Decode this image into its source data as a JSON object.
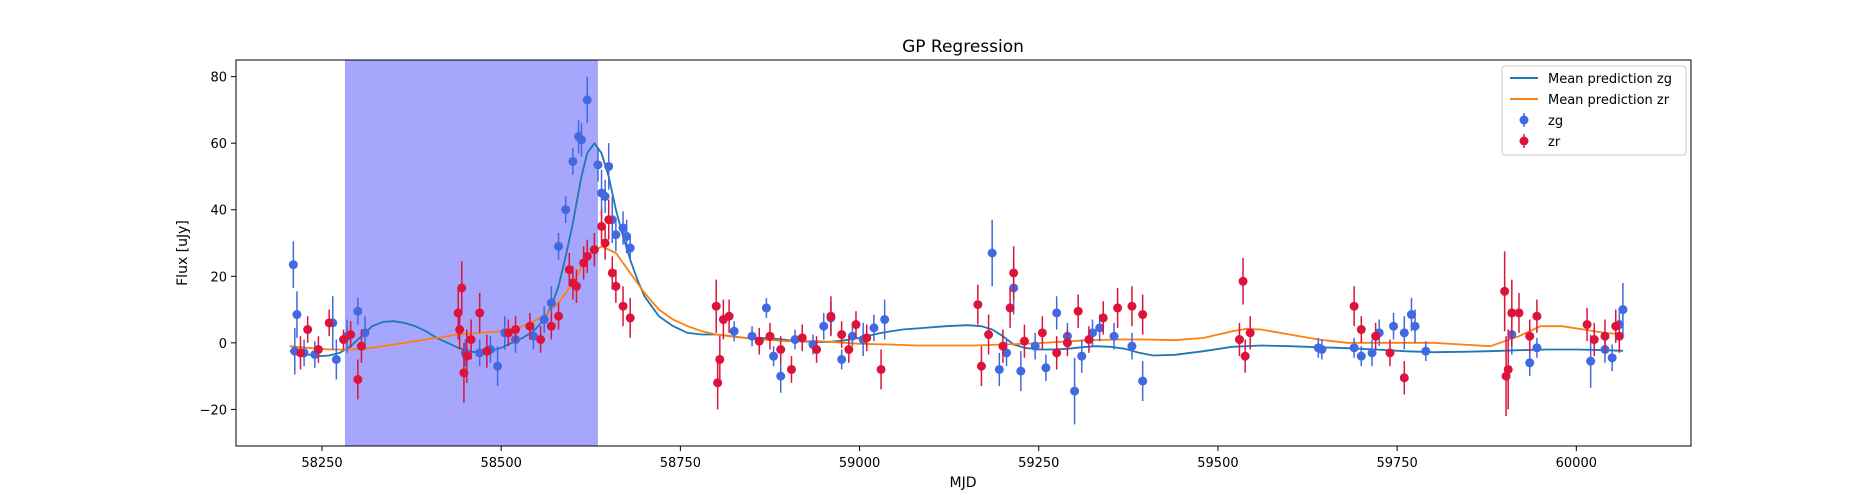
{
  "chart_data": {
    "type": "scatter",
    "title": "GP Regression",
    "xlabel": "MJD",
    "ylabel": "Flux [uJy]",
    "xlim": [
      58130,
      60160
    ],
    "ylim": [
      -31,
      85
    ],
    "xticks": [
      58250,
      58500,
      58750,
      59000,
      59250,
      59500,
      59750,
      60000
    ],
    "yticks": [
      -20,
      0,
      20,
      40,
      60,
      80
    ],
    "grid": false,
    "legend_position": "top-right",
    "highlight_region": {
      "x": [
        58282,
        58635
      ],
      "color": "#a6a6fd"
    },
    "series": [
      {
        "name": "Mean prediction zg",
        "kind": "line",
        "color": "#1f77b4",
        "x": [
          58205,
          58215,
          58230,
          58245,
          58260,
          58275,
          58290,
          58305,
          58320,
          58335,
          58350,
          58365,
          58380,
          58395,
          58410,
          58425,
          58440,
          58455,
          58470,
          58485,
          58500,
          58515,
          58530,
          58545,
          58560,
          58570,
          58580,
          58590,
          58600,
          58605,
          58612,
          58620,
          58630,
          58640,
          58650,
          58660,
          58670,
          58680,
          58690,
          58700,
          58720,
          58740,
          58760,
          58780,
          58800,
          58820,
          58840,
          58860,
          58880,
          58900,
          58920,
          58940,
          58960,
          58980,
          59000,
          59030,
          59060,
          59090,
          59120,
          59150,
          59170,
          59185,
          59200,
          59215,
          59230,
          59250,
          59270,
          59290,
          59310,
          59330,
          59350,
          59370,
          59390,
          59410,
          59440,
          59480,
          59520,
          59560,
          59600,
          59640,
          59680,
          59720,
          59760,
          59800,
          59840,
          59880,
          59920,
          59960,
          60000,
          60040,
          60065
        ],
        "y": [
          -2.5,
          -2.8,
          -3.5,
          -4,
          -3.8,
          -3,
          -1,
          2,
          5,
          6.3,
          6.5,
          6,
          5,
          3.5,
          1.5,
          0,
          -1.5,
          -2.5,
          -3,
          -2.5,
          -1.5,
          0,
          1.5,
          3.5,
          7,
          11,
          17,
          26,
          36,
          42,
          50,
          57,
          60,
          57,
          50,
          40,
          32,
          25,
          19,
          14,
          8,
          5,
          3,
          2.5,
          2.5,
          2,
          1.5,
          1.5,
          1.3,
          0.8,
          0.4,
          0.2,
          0.3,
          0.8,
          1.5,
          3,
          4,
          4.5,
          5,
          5.3,
          5,
          4,
          2,
          -0.5,
          -1.5,
          -2,
          -2,
          -1.8,
          -1.3,
          -1,
          -1.2,
          -1.8,
          -3,
          -3.8,
          -3.6,
          -2.5,
          -1.2,
          -0.8,
          -1,
          -1.3,
          -1.6,
          -2,
          -2.5,
          -2.8,
          -2.7,
          -2.5,
          -2.2,
          -2,
          -2,
          -2.2,
          -2.4
        ]
      },
      {
        "name": "Mean prediction zr",
        "kind": "line",
        "color": "#ff7f0e",
        "x": [
          58205,
          58230,
          58260,
          58290,
          58320,
          58350,
          58380,
          58410,
          58440,
          58470,
          58500,
          58530,
          58560,
          58580,
          58600,
          58620,
          58640,
          58660,
          58680,
          58700,
          58720,
          58740,
          58760,
          58780,
          58800,
          58820,
          58840,
          58860,
          58880,
          58900,
          58920,
          58940,
          58960,
          58980,
          59000,
          59040,
          59080,
          59120,
          59160,
          59200,
          59240,
          59280,
          59320,
          59360,
          59400,
          59440,
          59480,
          59520,
          59540,
          59560,
          59600,
          59640,
          59680,
          59720,
          59760,
          59800,
          59840,
          59880,
          59920,
          59950,
          59980,
          60010,
          60040,
          60065
        ],
        "y": [
          -1,
          -1.5,
          -2,
          -2,
          -1.5,
          -0.5,
          0.5,
          1.5,
          2.5,
          3,
          3.5,
          5,
          8,
          12,
          18,
          26,
          29,
          27,
          21,
          15,
          10,
          7,
          5,
          3.5,
          2.5,
          2,
          1.5,
          1,
          0.8,
          0.5,
          0.5,
          0.5,
          0.3,
          0,
          -0.3,
          -0.5,
          -0.8,
          -0.8,
          -0.8,
          -0.5,
          -0.2,
          0.3,
          0.8,
          1,
          1,
          0.8,
          1.5,
          3.5,
          4.2,
          4,
          2.5,
          1,
          0,
          0,
          0,
          0,
          -0.5,
          -1,
          2,
          5,
          5,
          4,
          3,
          2.5
        ]
      },
      {
        "name": "zg",
        "kind": "errorbar",
        "color": "#4169e1",
        "points": [
          [
            58210,
            23.5,
            7
          ],
          [
            58212,
            -2.5,
            7
          ],
          [
            58215,
            8.5,
            7
          ],
          [
            58225,
            -3,
            4
          ],
          [
            58240,
            -3.5,
            4
          ],
          [
            58265,
            6,
            8
          ],
          [
            58270,
            -5,
            6
          ],
          [
            58285,
            2,
            5
          ],
          [
            58300,
            9.5,
            4
          ],
          [
            58310,
            3,
            5
          ],
          [
            58450,
            -3,
            4
          ],
          [
            58470,
            -3,
            4
          ],
          [
            58485,
            -2,
            4
          ],
          [
            58495,
            -7,
            6
          ],
          [
            58505,
            3,
            5
          ],
          [
            58520,
            1,
            4
          ],
          [
            58545,
            2,
            4
          ],
          [
            58560,
            7,
            4
          ],
          [
            58570,
            12,
            5
          ],
          [
            58580,
            29,
            4
          ],
          [
            58590,
            40,
            4
          ],
          [
            58600,
            54.5,
            4
          ],
          [
            58608,
            62,
            5
          ],
          [
            58612,
            61,
            5
          ],
          [
            58620,
            73,
            7
          ],
          [
            58635,
            53.5,
            5
          ],
          [
            58640,
            45,
            7
          ],
          [
            58645,
            44,
            5
          ],
          [
            58650,
            53,
            7
          ],
          [
            58655,
            37,
            7
          ],
          [
            58660,
            32.5,
            5
          ],
          [
            58670,
            34.5,
            5
          ],
          [
            58675,
            32,
            5
          ],
          [
            58680,
            28.5,
            4
          ],
          [
            58825,
            3.5,
            3
          ],
          [
            58850,
            2,
            3
          ],
          [
            58870,
            10.5,
            3
          ],
          [
            58880,
            -4,
            3
          ],
          [
            58890,
            -10,
            5
          ],
          [
            58910,
            1,
            3
          ],
          [
            58935,
            -0.5,
            3
          ],
          [
            58950,
            5,
            4
          ],
          [
            58960,
            7.5,
            5
          ],
          [
            58975,
            -5,
            3
          ],
          [
            58990,
            2,
            3
          ],
          [
            59005,
            1,
            5
          ],
          [
            59020,
            4.5,
            4
          ],
          [
            59035,
            7,
            6
          ],
          [
            59185,
            27,
            10
          ],
          [
            59195,
            -8,
            5
          ],
          [
            59205,
            -3,
            4
          ],
          [
            59215,
            16.5,
            8
          ],
          [
            59225,
            -8.5,
            6
          ],
          [
            59245,
            -1,
            4
          ],
          [
            59260,
            -7.5,
            4
          ],
          [
            59275,
            9,
            5
          ],
          [
            59290,
            2,
            4
          ],
          [
            59300,
            -14.5,
            10
          ],
          [
            59310,
            -4,
            5
          ],
          [
            59325,
            3,
            4
          ],
          [
            59335,
            4.5,
            4
          ],
          [
            59355,
            2,
            4
          ],
          [
            59380,
            -1,
            4
          ],
          [
            59395,
            -11.5,
            6
          ],
          [
            59640,
            -1.5,
            3
          ],
          [
            59645,
            -2,
            3
          ],
          [
            59690,
            -1.5,
            3
          ],
          [
            59700,
            -4,
            3
          ],
          [
            59715,
            -3,
            4
          ],
          [
            59725,
            3,
            4
          ],
          [
            59745,
            5,
            4
          ],
          [
            59760,
            3,
            5
          ],
          [
            59770,
            8.5,
            5
          ],
          [
            59775,
            5,
            5
          ],
          [
            59790,
            -2.5,
            3
          ],
          [
            59910,
            2.5,
            6
          ],
          [
            59935,
            -6,
            4
          ],
          [
            59945,
            -1.5,
            3
          ],
          [
            60020,
            -5.5,
            8
          ],
          [
            60040,
            -2,
            4
          ],
          [
            60050,
            -4.5,
            4
          ],
          [
            60060,
            5.5,
            5
          ],
          [
            60065,
            10,
            8
          ]
        ]
      },
      {
        "name": "zr",
        "kind": "errorbar",
        "color": "#dc143c",
        "points": [
          [
            58220,
            -3,
            5
          ],
          [
            58230,
            4,
            4
          ],
          [
            58245,
            -2,
            4
          ],
          [
            58260,
            6,
            4
          ],
          [
            58280,
            1,
            3
          ],
          [
            58290,
            2.5,
            4
          ],
          [
            58300,
            -11,
            6
          ],
          [
            58305,
            -1,
            5
          ],
          [
            58440,
            9,
            8
          ],
          [
            58442,
            4,
            6
          ],
          [
            58445,
            16.5,
            8
          ],
          [
            58448,
            -9,
            9
          ],
          [
            58452,
            -4,
            8
          ],
          [
            58458,
            1,
            6
          ],
          [
            58470,
            9,
            6
          ],
          [
            58480,
            -2.5,
            5
          ],
          [
            58510,
            3,
            4
          ],
          [
            58520,
            4,
            4
          ],
          [
            58540,
            5,
            4
          ],
          [
            58555,
            1,
            4
          ],
          [
            58570,
            5,
            4
          ],
          [
            58580,
            8,
            4
          ],
          [
            58595,
            22,
            5
          ],
          [
            58600,
            18,
            5
          ],
          [
            58605,
            17,
            5
          ],
          [
            58615,
            24,
            5
          ],
          [
            58620,
            26,
            5
          ],
          [
            58630,
            28,
            5
          ],
          [
            58640,
            35,
            5
          ],
          [
            58645,
            30,
            5
          ],
          [
            58650,
            37,
            6
          ],
          [
            58655,
            21,
            5
          ],
          [
            58660,
            17,
            5
          ],
          [
            58670,
            11,
            6
          ],
          [
            58680,
            7.5,
            6
          ],
          [
            58800,
            11,
            8
          ],
          [
            58802,
            -12,
            8
          ],
          [
            58805,
            -5,
            7
          ],
          [
            58810,
            7,
            6
          ],
          [
            58818,
            8,
            5
          ],
          [
            58860,
            0.5,
            4
          ],
          [
            58875,
            2,
            4
          ],
          [
            58890,
            -2,
            4
          ],
          [
            58905,
            -8,
            4
          ],
          [
            58920,
            1.5,
            4
          ],
          [
            58940,
            -2,
            4
          ],
          [
            58960,
            8,
            6
          ],
          [
            58975,
            2.5,
            4
          ],
          [
            58985,
            -2,
            4
          ],
          [
            58995,
            5.5,
            4
          ],
          [
            59010,
            1.5,
            4
          ],
          [
            59030,
            -8,
            6
          ],
          [
            59165,
            11.5,
            6
          ],
          [
            59170,
            -7,
            6
          ],
          [
            59180,
            2.5,
            6
          ],
          [
            59200,
            -1,
            5
          ],
          [
            59210,
            10.5,
            6
          ],
          [
            59215,
            21,
            8
          ],
          [
            59230,
            0.5,
            5
          ],
          [
            59255,
            3,
            5
          ],
          [
            59275,
            -3,
            5
          ],
          [
            59290,
            0,
            4
          ],
          [
            59305,
            9.5,
            5
          ],
          [
            59320,
            1,
            4
          ],
          [
            59340,
            7.5,
            5
          ],
          [
            59360,
            10.5,
            6
          ],
          [
            59380,
            11,
            6
          ],
          [
            59395,
            8.5,
            6
          ],
          [
            59530,
            1,
            5
          ],
          [
            59535,
            18.5,
            7
          ],
          [
            59538,
            -4,
            5
          ],
          [
            59545,
            3,
            5
          ],
          [
            59690,
            11,
            6
          ],
          [
            59700,
            4,
            4
          ],
          [
            59720,
            2,
            4
          ],
          [
            59740,
            -3,
            4
          ],
          [
            59760,
            -10.5,
            5
          ],
          [
            59900,
            15.5,
            12
          ],
          [
            59902,
            -10,
            12
          ],
          [
            59905,
            -8,
            12
          ],
          [
            59910,
            9,
            10
          ],
          [
            59920,
            9,
            6
          ],
          [
            59935,
            2,
            5
          ],
          [
            59945,
            8,
            5
          ],
          [
            60015,
            5.5,
            5
          ],
          [
            60025,
            1,
            5
          ],
          [
            60040,
            2,
            5
          ],
          [
            60055,
            5,
            5
          ],
          [
            60060,
            2,
            5
          ]
        ]
      }
    ]
  }
}
